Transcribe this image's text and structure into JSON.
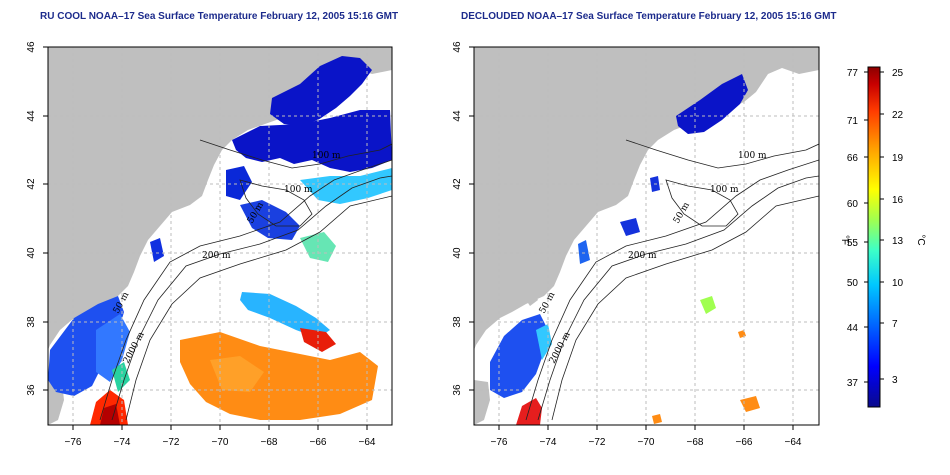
{
  "panels": [
    {
      "title": "RU COOL NOAA–17 Sea Surface Temperature February 12, 2005 15:16 GMT",
      "contour_labels": [
        "100 m",
        "100 m",
        "50 m",
        "200 m",
        "50 m",
        "2000 m"
      ]
    },
    {
      "title": "DECLOUDED NOAA–17 Sea Surface Temperature February 12, 2005 15:16 GMT",
      "contour_labels": [
        "100 m",
        "100 m",
        "50 m",
        "200 m",
        "50 m",
        "2000 m"
      ]
    }
  ],
  "map_axes": {
    "longitude_ticks": [
      "−76",
      "−74",
      "−72",
      "−70",
      "−68",
      "−66",
      "−64"
    ],
    "latitude_ticks": [
      "36",
      "38",
      "40",
      "42",
      "44",
      "46"
    ],
    "longitude_range": [
      -77,
      -63
    ],
    "latitude_range": [
      35,
      46
    ]
  },
  "colorbar": {
    "unit_f": "°F",
    "unit_c": "°C",
    "fahrenheit_ticks": [
      "77",
      "71",
      "66",
      "60",
      "55",
      "50",
      "44",
      "37"
    ],
    "celsius_ticks": [
      "25",
      "22",
      "19",
      "16",
      "13",
      "10",
      "7",
      "3"
    ],
    "colors": [
      "#0a0a8c",
      "#0000ff",
      "#0064ff",
      "#00c8ff",
      "#3cffc8",
      "#a0ff50",
      "#ffff00",
      "#ffa000",
      "#ff3c00",
      "#c80000",
      "#8c0000"
    ]
  },
  "colors": {
    "land": "#bfbfbf",
    "title": "#1c2b8c",
    "grid": "#bdbdbd"
  }
}
